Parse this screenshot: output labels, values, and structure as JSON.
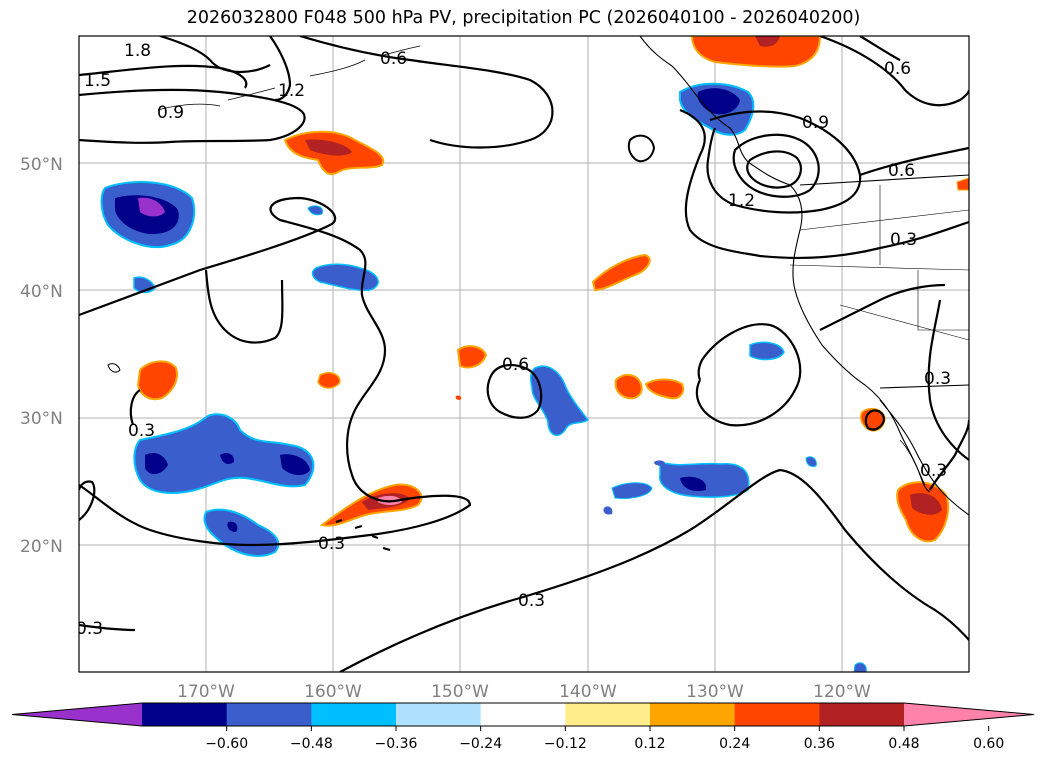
{
  "title": "2026032800 F048 500 hPa PV, precipitation PC (2026040100 - 2026040200)",
  "map": {
    "lat_labels": [
      "50°N",
      "40°N",
      "30°N",
      "20°N"
    ],
    "lon_labels": [
      "170°W",
      "160°W",
      "150°W",
      "140°W",
      "130°W",
      "120°W"
    ],
    "extent": {
      "lon_min": -180,
      "lon_max": -110,
      "lat_min": 10,
      "lat_max": 60
    },
    "contour_labels": [
      "1.8",
      "1.5",
      "1.2",
      "0.6",
      "0.9",
      "0.9",
      "0.6",
      "1.2",
      "0.3",
      "0.6",
      "0.3",
      "0.3",
      "0.3",
      "0.3",
      "0.3",
      "0.3"
    ]
  },
  "colorbar": {
    "ticks": [
      "−0.60",
      "−0.48",
      "−0.36",
      "−0.24",
      "−0.12",
      "0.12",
      "0.24",
      "0.36",
      "0.48",
      "0.60"
    ],
    "colors": [
      "#9932CC",
      "#00008B",
      "#3A5FCD",
      "#00BFFF",
      "#B0E2FF",
      "#FFFFFF",
      "#FFEC8B",
      "#FFA500",
      "#FF4500",
      "#B22222",
      "#FF82AB"
    ]
  }
}
